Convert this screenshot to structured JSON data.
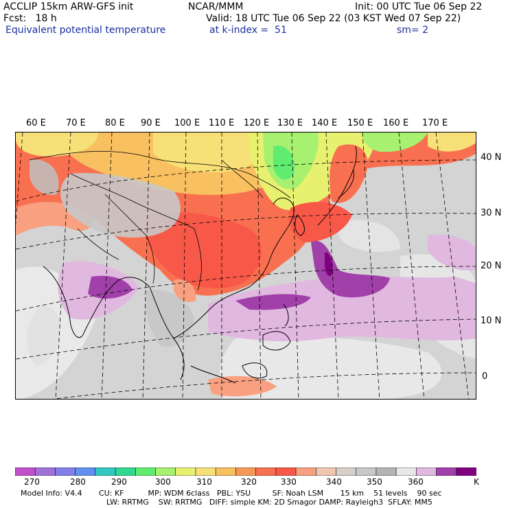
{
  "header": {
    "left_line1": "ACCLIP 15km ARW-GFS init",
    "left_line2": "Fcst:   18 h",
    "field_name": "Equivalent potential temperature",
    "center_line1": "NCAR/MMM",
    "valid_line": "Valid: 18 UTC Tue 06 Sep 22 (03 KST Wed 07 Sep 22)",
    "level_line": "at k-index =  51",
    "init_line": "Init: 00 UTC Tue 06 Sep 22",
    "smooth_line": "sm= 2"
  },
  "map": {
    "lon_labels": [
      "60 E",
      "70 E",
      "80 E",
      "90 E",
      "100 E",
      "110 E",
      "120 E",
      "130 E",
      "140 E",
      "150 E",
      "160 E",
      "170 E"
    ],
    "lat_labels": [
      "40 N",
      "30 N",
      "20 N",
      "10 N",
      "0"
    ]
  },
  "colorbar": {
    "unit": "K",
    "colors": [
      "#c050c8",
      "#a070d8",
      "#8080e8",
      "#6090f0",
      "#30c8c0",
      "#30d890",
      "#60ec70",
      "#a8f070",
      "#e8f070",
      "#f8e078",
      "#f8c060",
      "#f89858",
      "#f87050",
      "#f85848",
      "#f8a080",
      "#f0c8b0",
      "#d8d0c8",
      "#c8c8c8",
      "#b4b4b4",
      "#e8e8e8",
      "#e0b8e0",
      "#a040a8",
      "#800080"
    ],
    "labels": [
      "270",
      "280",
      "290",
      "300",
      "310",
      "320",
      "330",
      "340",
      "350",
      "360"
    ]
  },
  "model_info": {
    "line1": "Model Info: V4.4       CU: KF          MP: WDM 6class   PBL: YSU         SF: Noah LSM       15 km    51 levels    90 sec",
    "line2": "LW: RRTMG    SW: RRTMG   DIFF: simple KM: 2D Smagor DAMP: Rayleigh3  SFLAY: MM5"
  }
}
